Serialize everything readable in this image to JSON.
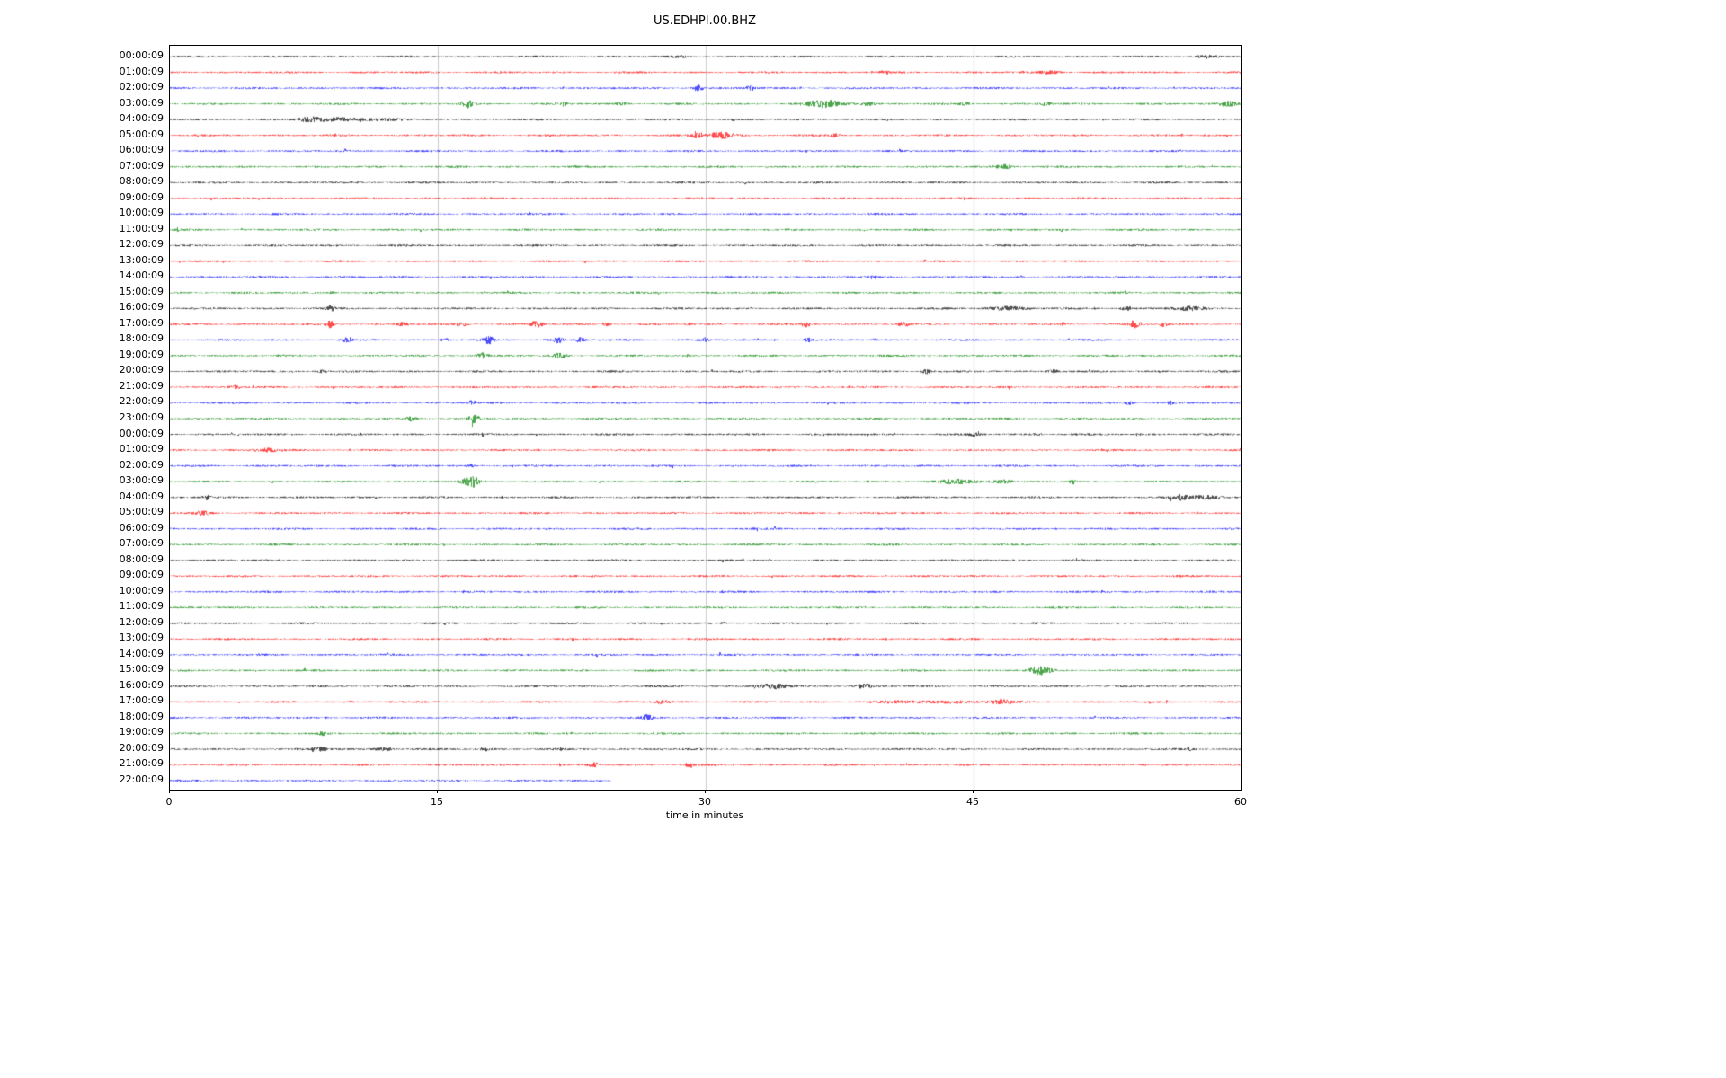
{
  "title": "US.EDHPI.00.BHZ",
  "chart_data": {
    "type": "line",
    "subtype": "helicorder-seismogram-dayplot",
    "title": "US.EDHPI.00.BHZ",
    "xlabel": "time in minutes",
    "xlim": [
      0,
      60
    ],
    "xticks": [
      0,
      15,
      30,
      45,
      60
    ],
    "grid": "vertical-gridlines-at-15-30-45",
    "gridline_color": "#cccccc",
    "trace_color_cycle": [
      "#000000",
      "#ff0000",
      "#0000ff",
      "#008000"
    ],
    "row_note": "each row = one hour of data; events = [minute, relative_amplitude, width_minutes]",
    "rows": [
      {
        "label": "00:00:09",
        "color": "#000000",
        "events": [
          [
            28.5,
            1.2,
            0.3
          ],
          [
            58,
            2,
            0.5
          ]
        ]
      },
      {
        "label": "01:00:09",
        "color": "#ff0000",
        "events": [
          [
            40,
            1.2,
            0.3
          ],
          [
            49.3,
            2.2,
            0.6
          ]
        ]
      },
      {
        "label": "02:00:09",
        "color": "#0000ff",
        "events": [
          [
            22,
            1.5,
            0.15
          ],
          [
            29.5,
            5.5,
            0.25
          ],
          [
            32.5,
            2.8,
            0.25
          ]
        ]
      },
      {
        "label": "03:00:09",
        "color": "#008000",
        "events": [
          [
            16.6,
            4.5,
            0.3
          ],
          [
            22,
            2.5,
            0.15
          ],
          [
            25.3,
            1.8,
            0.3
          ],
          [
            36.8,
            3.5,
            1.2
          ],
          [
            39,
            2,
            0.4
          ],
          [
            44.5,
            1.5,
            0.3
          ],
          [
            49,
            1.8,
            0.3
          ],
          [
            59.3,
            3.5,
            0.5
          ]
        ]
      },
      {
        "label": "04:00:09",
        "color": "#000000",
        "events": [
          [
            7.8,
            2.8,
            0.6
          ],
          [
            9.5,
            2,
            1.5
          ],
          [
            11.5,
            1.5,
            1.0
          ]
        ]
      },
      {
        "label": "05:00:09",
        "color": "#ff0000",
        "events": [
          [
            29.5,
            2,
            0.4
          ],
          [
            30.8,
            4.5,
            0.7
          ],
          [
            37.2,
            2.5,
            0.25
          ]
        ]
      },
      {
        "label": "06:00:09",
        "color": "#0000ff",
        "events": []
      },
      {
        "label": "07:00:09",
        "color": "#008000",
        "events": [
          [
            46.8,
            3.5,
            0.5
          ]
        ]
      },
      {
        "label": "08:00:09",
        "color": "#000000",
        "events": []
      },
      {
        "label": "09:00:09",
        "color": "#ff0000",
        "events": []
      },
      {
        "label": "10:00:09",
        "color": "#0000ff",
        "events": []
      },
      {
        "label": "11:00:09",
        "color": "#008000",
        "events": []
      },
      {
        "label": "12:00:09",
        "color": "#000000",
        "events": []
      },
      {
        "label": "13:00:09",
        "color": "#ff0000",
        "events": []
      },
      {
        "label": "14:00:09",
        "color": "#0000ff",
        "events": []
      },
      {
        "label": "15:00:09",
        "color": "#008000",
        "events": [
          [
            9,
            1.8,
            0.2
          ]
        ]
      },
      {
        "label": "16:00:09",
        "color": "#000000",
        "events": [
          [
            8.9,
            2.5,
            0.25
          ],
          [
            46.8,
            2,
            1.2
          ],
          [
            53.5,
            2.5,
            0.3
          ],
          [
            57,
            2,
            0.9
          ]
        ]
      },
      {
        "label": "17:00:09",
        "color": "#ff0000",
        "events": [
          [
            8.9,
            3.5,
            0.25
          ],
          [
            13,
            2.5,
            0.25
          ],
          [
            16.3,
            3,
            0.3
          ],
          [
            20.5,
            3.5,
            0.3
          ],
          [
            24.4,
            2.5,
            0.25
          ],
          [
            29,
            1.5,
            0.2
          ],
          [
            35.6,
            3,
            0.25
          ],
          [
            41,
            2.5,
            0.25
          ],
          [
            50,
            2,
            0.2
          ],
          [
            54,
            3.5,
            0.3
          ],
          [
            55.6,
            2.5,
            0.25
          ]
        ]
      },
      {
        "label": "18:00:09",
        "color": "#0000ff",
        "events": [
          [
            9.9,
            2.5,
            0.25
          ],
          [
            15.4,
            2.5,
            0.25
          ],
          [
            17.8,
            3,
            0.3
          ],
          [
            21.6,
            3.5,
            0.35
          ],
          [
            22.9,
            3,
            0.25
          ],
          [
            29.9,
            2.5,
            0.25
          ],
          [
            35.7,
            2.5,
            0.25
          ]
        ]
      },
      {
        "label": "19:00:09",
        "color": "#008000",
        "events": [
          [
            17.4,
            3.5,
            0.3
          ],
          [
            21.8,
            3.5,
            0.35
          ]
        ]
      },
      {
        "label": "20:00:09",
        "color": "#000000",
        "events": [
          [
            8.4,
            2.5,
            0.3
          ],
          [
            42.3,
            3.5,
            0.25
          ],
          [
            49.4,
            2.8,
            0.35
          ]
        ]
      },
      {
        "label": "21:00:09",
        "color": "#ff0000",
        "events": [
          [
            3.6,
            1.8,
            0.3
          ]
        ]
      },
      {
        "label": "22:00:09",
        "color": "#0000ff",
        "events": [
          [
            16.9,
            2.5,
            0.25
          ],
          [
            53.7,
            2.8,
            0.25
          ],
          [
            56,
            1.5,
            0.2
          ]
        ]
      },
      {
        "label": "23:00:09",
        "color": "#008000",
        "events": [
          [
            13.4,
            3,
            0.3
          ],
          [
            17,
            3.5,
            0.3
          ]
        ]
      },
      {
        "label": "00:00:09",
        "color": "#000000",
        "events": [
          [
            45,
            1.6,
            0.3
          ],
          [
            48.5,
            1.4,
            0.3
          ]
        ]
      },
      {
        "label": "01:00:09",
        "color": "#ff0000",
        "events": [
          [
            5.4,
            2,
            0.7
          ]
        ]
      },
      {
        "label": "02:00:09",
        "color": "#0000ff",
        "events": [
          [
            16.8,
            1.8,
            0.2
          ]
        ]
      },
      {
        "label": "03:00:09",
        "color": "#008000",
        "events": [
          [
            16.8,
            5.5,
            0.5
          ],
          [
            44.3,
            2.5,
            1.2
          ],
          [
            46.5,
            2,
            0.6
          ],
          [
            50.5,
            2,
            0.2
          ]
        ]
      },
      {
        "label": "04:00:09",
        "color": "#000000",
        "events": [
          [
            2,
            2.5,
            0.2
          ],
          [
            56.6,
            2.5,
            0.5
          ],
          [
            58,
            3.5,
            0.8
          ]
        ]
      },
      {
        "label": "05:00:09",
        "color": "#ff0000",
        "events": [
          [
            1.8,
            2,
            0.4
          ]
        ]
      },
      {
        "label": "06:00:09",
        "color": "#0000ff",
        "events": []
      },
      {
        "label": "07:00:09",
        "color": "#008000",
        "events": []
      },
      {
        "label": "08:00:09",
        "color": "#000000",
        "events": []
      },
      {
        "label": "09:00:09",
        "color": "#ff0000",
        "events": []
      },
      {
        "label": "10:00:09",
        "color": "#0000ff",
        "events": []
      },
      {
        "label": "11:00:09",
        "color": "#008000",
        "events": []
      },
      {
        "label": "12:00:09",
        "color": "#000000",
        "events": [
          [
            31,
            1.3,
            0.2
          ]
        ]
      },
      {
        "label": "13:00:09",
        "color": "#ff0000",
        "events": []
      },
      {
        "label": "14:00:09",
        "color": "#0000ff",
        "events": []
      },
      {
        "label": "15:00:09",
        "color": "#008000",
        "events": [
          [
            48.7,
            4,
            0.6
          ]
        ]
      },
      {
        "label": "16:00:09",
        "color": "#000000",
        "events": [
          [
            33.6,
            2.5,
            0.8
          ],
          [
            38.8,
            2.5,
            0.4
          ]
        ]
      },
      {
        "label": "17:00:09",
        "color": "#ff0000",
        "events": [
          [
            27.5,
            2,
            0.4
          ],
          [
            43,
            1.5,
            3.0
          ],
          [
            46.5,
            2,
            0.5
          ]
        ]
      },
      {
        "label": "18:00:09",
        "color": "#0000ff",
        "events": [
          [
            26.7,
            3,
            0.25
          ]
        ]
      },
      {
        "label": "19:00:09",
        "color": "#008000",
        "events": [
          [
            8.5,
            1.8,
            0.2
          ]
        ]
      },
      {
        "label": "20:00:09",
        "color": "#000000",
        "events": [
          [
            8.4,
            2,
            0.4
          ],
          [
            12,
            2.5,
            0.5
          ],
          [
            17.6,
            1.8,
            0.4
          ],
          [
            57,
            1.8,
            0.3
          ]
        ]
      },
      {
        "label": "21:00:09",
        "color": "#ff0000",
        "events": [
          [
            23.7,
            2.8,
            0.25
          ],
          [
            29,
            2.2,
            0.25
          ],
          [
            54.5,
            1.5,
            0.2
          ]
        ]
      },
      {
        "label": "22:00:09",
        "color": "#0000ff",
        "events": [],
        "end": 24.7
      }
    ]
  }
}
